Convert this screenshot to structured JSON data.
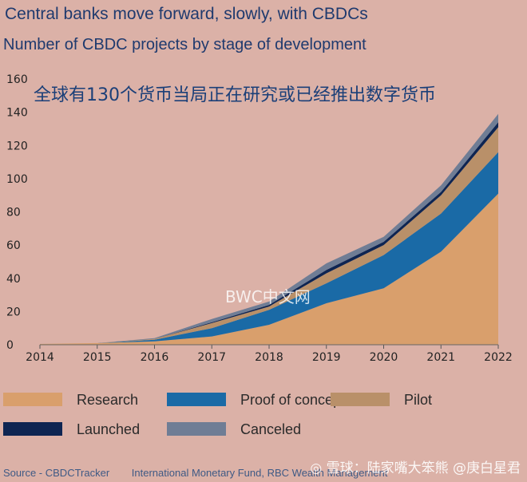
{
  "header": {
    "title": "Central banks move forward, slowly, with CBDCs",
    "subtitle": "Number of CBDC projects by stage of development"
  },
  "chart_data": {
    "type": "area",
    "stacked": true,
    "title": "Central banks move forward, slowly, with CBDCs",
    "subtitle": "Number of CBDC projects by stage of development",
    "x": [
      "2014",
      "2015",
      "2016",
      "2017",
      "2018",
      "2019",
      "2020",
      "2021",
      "2022"
    ],
    "ylim": [
      0,
      160
    ],
    "yticks": [
      0,
      20,
      40,
      60,
      80,
      100,
      120,
      140,
      160
    ],
    "grid": false,
    "legend_position": "bottom",
    "series": [
      {
        "name": "Research",
        "color": "#d99f6c",
        "values": [
          0.5,
          1,
          2,
          5,
          12,
          25,
          34,
          56,
          91
        ]
      },
      {
        "name": "Proof of concept",
        "color": "#1a6aa6",
        "values": [
          0,
          0,
          1,
          5,
          9,
          12,
          20,
          23,
          25
        ]
      },
      {
        "name": "Pilot",
        "color": "#b99069",
        "values": [
          0,
          0,
          0.5,
          3,
          2,
          6,
          6,
          11,
          15
        ]
      },
      {
        "name": "Launched",
        "color": "#0e2552",
        "values": [
          0,
          0,
          0,
          0.5,
          1,
          2,
          2,
          2,
          3
        ]
      },
      {
        "name": "Canceled",
        "color": "#6f7d95",
        "values": [
          0,
          0,
          0.5,
          2,
          2,
          4,
          3,
          4,
          5
        ]
      }
    ],
    "annotation": "全球有130个货币当局正在研究或已经推出数字货币",
    "watermark": "BWC中文网"
  },
  "footer": {
    "source": "Source - CBDCTracker",
    "organizations": "International Monetary Fund, RBC Wealth Management"
  },
  "overlay": {
    "weibo_mark": "◎ 雪球：陆家嘴大笨熊  @庚白星君"
  }
}
